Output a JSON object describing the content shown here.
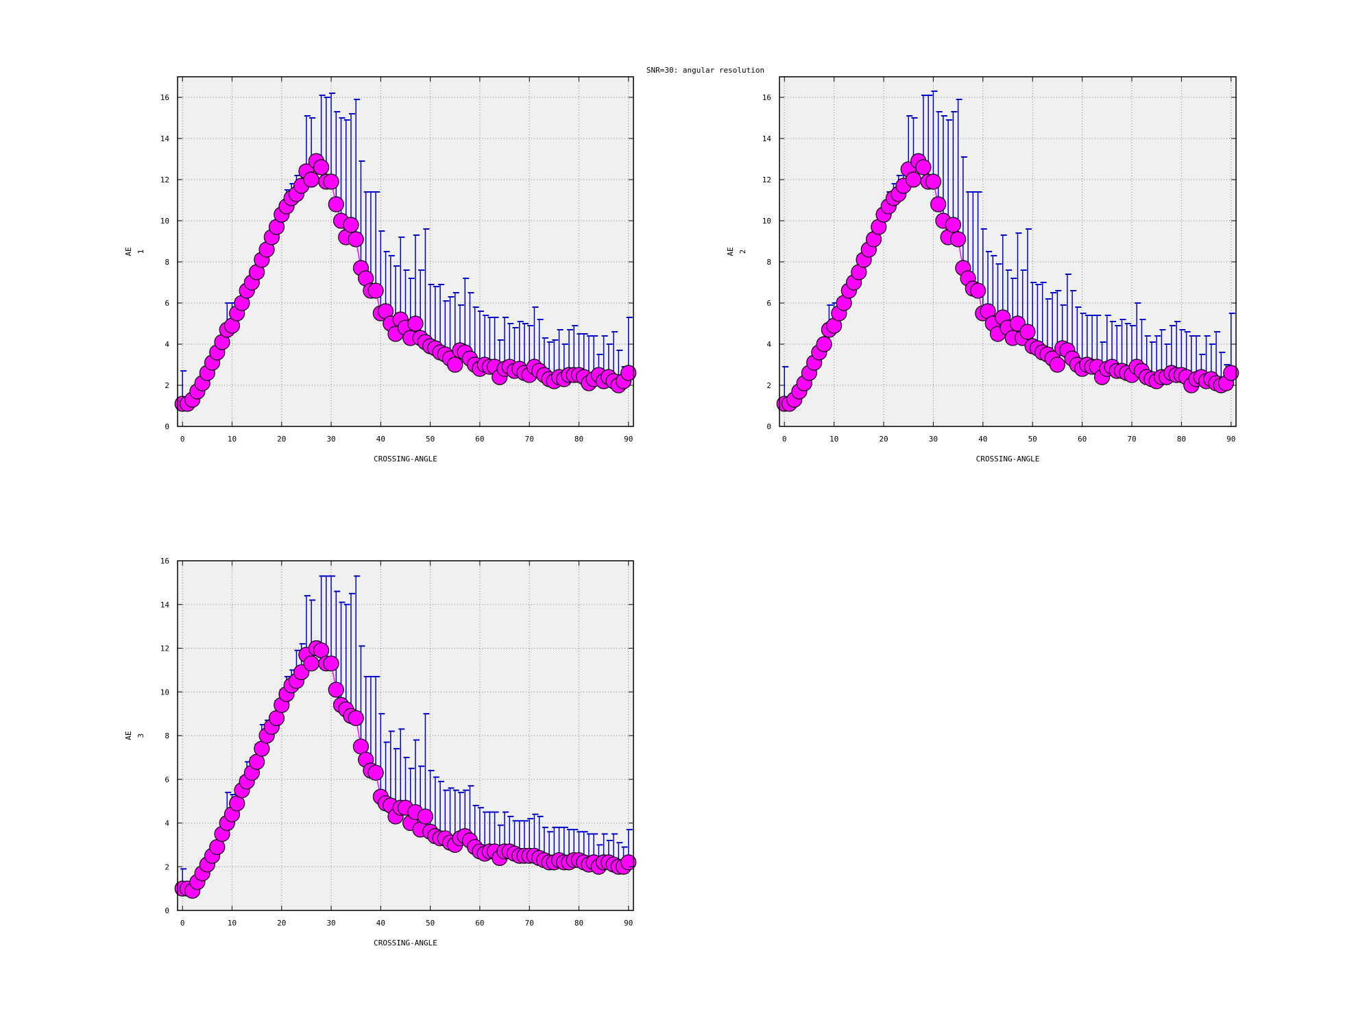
{
  "title": "SNR=30: angular resolution",
  "colors": {
    "marker": "#ff00ff",
    "errorbar": "#0000cd",
    "plot_bg": "#f0f0f0",
    "grid": "#808080"
  },
  "chart_data": [
    {
      "type": "scatter",
      "xlabel": "CROSSING-ANGLE",
      "ylabel": "AE",
      "ylabel_sub": "1",
      "xlim": [
        -1,
        91
      ],
      "ylim": [
        0,
        17
      ],
      "xticks": [
        0,
        10,
        20,
        30,
        40,
        50,
        60,
        70,
        80,
        90
      ],
      "yticks": [
        0,
        2,
        4,
        6,
        8,
        10,
        12,
        14,
        16
      ],
      "grid": true,
      "x": [
        0,
        1,
        2,
        3,
        4,
        5,
        6,
        7,
        8,
        9,
        10,
        11,
        12,
        13,
        14,
        15,
        16,
        17,
        18,
        19,
        20,
        21,
        22,
        23,
        24,
        25,
        26,
        27,
        28,
        29,
        30,
        31,
        32,
        33,
        34,
        35,
        36,
        37,
        38,
        39,
        40,
        41,
        42,
        43,
        44,
        45,
        46,
        47,
        48,
        49,
        50,
        51,
        52,
        53,
        54,
        55,
        56,
        57,
        58,
        59,
        60,
        61,
        62,
        63,
        64,
        65,
        66,
        67,
        68,
        69,
        70,
        71,
        72,
        73,
        74,
        75,
        76,
        77,
        78,
        79,
        80,
        81,
        82,
        83,
        84,
        85,
        86,
        87,
        88,
        89,
        90
      ],
      "y": [
        1.1,
        1.1,
        1.3,
        1.7,
        2.1,
        2.6,
        3.1,
        3.6,
        4.1,
        4.7,
        4.9,
        5.5,
        6.0,
        6.6,
        7.0,
        7.5,
        8.1,
        8.6,
        9.2,
        9.7,
        10.3,
        10.7,
        11.1,
        11.3,
        11.7,
        12.4,
        12.0,
        12.9,
        12.6,
        11.9,
        11.9,
        10.8,
        10.0,
        9.2,
        9.8,
        9.1,
        7.7,
        7.2,
        6.6,
        6.6,
        5.5,
        5.6,
        5.0,
        4.5,
        5.2,
        4.8,
        4.3,
        5.0,
        4.3,
        4.1,
        3.9,
        3.8,
        3.6,
        3.5,
        3.3,
        3.0,
        3.7,
        3.6,
        3.3,
        3.0,
        2.8,
        3.0,
        2.9,
        2.9,
        2.4,
        2.8,
        2.9,
        2.7,
        2.8,
        2.6,
        2.5,
        2.9,
        2.7,
        2.5,
        2.3,
        2.2,
        2.4,
        2.3,
        2.5,
        2.5,
        2.5,
        2.4,
        2.1,
        2.3,
        2.5,
        2.2,
        2.4,
        2.2,
        2.0,
        2.2,
        2.6
      ],
      "y_err_high": [
        2.7,
        1.2,
        1.6,
        1.9,
        2.3,
        2.9,
        3.5,
        4.0,
        4.8,
        6.0,
        6.0,
        6.2,
        6.5,
        7.0,
        7.6,
        8.3,
        8.7,
        9.1,
        9.5,
        9.8,
        10.4,
        11.5,
        11.8,
        12.2,
        12.6,
        15.1,
        15.0,
        13.0,
        16.1,
        16.0,
        16.2,
        15.3,
        15.0,
        14.9,
        15.2,
        15.9,
        12.9,
        11.4,
        11.4,
        11.4,
        9.5,
        8.5,
        8.3,
        7.8,
        9.2,
        7.6,
        7.2,
        9.3,
        7.6,
        9.6,
        6.9,
        6.8,
        6.9,
        6.1,
        6.3,
        6.5,
        5.9,
        7.2,
        6.5,
        5.8,
        5.6,
        5.4,
        5.3,
        5.3,
        4.2,
        5.3,
        5.0,
        4.8,
        5.1,
        5.0,
        4.9,
        5.8,
        5.2,
        4.3,
        4.1,
        4.2,
        4.7,
        4.0,
        4.7,
        4.9,
        4.5,
        4.5,
        4.4,
        4.4,
        3.5,
        4.4,
        4.0,
        4.6,
        3.7,
        2.9,
        5.3
      ]
    },
    {
      "type": "scatter",
      "xlabel": "CROSSING-ANGLE",
      "ylabel": "AE",
      "ylabel_sub": "2",
      "xlim": [
        -1,
        91
      ],
      "ylim": [
        0,
        17
      ],
      "xticks": [
        0,
        10,
        20,
        30,
        40,
        50,
        60,
        70,
        80,
        90
      ],
      "yticks": [
        0,
        2,
        4,
        6,
        8,
        10,
        12,
        14,
        16
      ],
      "grid": true,
      "x": [
        0,
        1,
        2,
        3,
        4,
        5,
        6,
        7,
        8,
        9,
        10,
        11,
        12,
        13,
        14,
        15,
        16,
        17,
        18,
        19,
        20,
        21,
        22,
        23,
        24,
        25,
        26,
        27,
        28,
        29,
        30,
        31,
        32,
        33,
        34,
        35,
        36,
        37,
        38,
        39,
        40,
        41,
        42,
        43,
        44,
        45,
        46,
        47,
        48,
        49,
        50,
        51,
        52,
        53,
        54,
        55,
        56,
        57,
        58,
        59,
        60,
        61,
        62,
        63,
        64,
        65,
        66,
        67,
        68,
        69,
        70,
        71,
        72,
        73,
        74,
        75,
        76,
        77,
        78,
        79,
        80,
        81,
        82,
        83,
        84,
        85,
        86,
        87,
        88,
        89,
        90
      ],
      "y": [
        1.1,
        1.1,
        1.3,
        1.7,
        2.1,
        2.6,
        3.1,
        3.6,
        4.0,
        4.7,
        4.9,
        5.5,
        6.0,
        6.6,
        7.0,
        7.5,
        8.1,
        8.6,
        9.1,
        9.7,
        10.3,
        10.7,
        11.1,
        11.3,
        11.7,
        12.5,
        12.0,
        12.9,
        12.6,
        11.9,
        11.9,
        10.8,
        10.0,
        9.2,
        9.8,
        9.1,
        7.7,
        7.2,
        6.7,
        6.6,
        5.5,
        5.6,
        5.0,
        4.5,
        5.3,
        4.8,
        4.3,
        5.0,
        4.3,
        4.6,
        3.9,
        3.8,
        3.6,
        3.5,
        3.3,
        3.0,
        3.8,
        3.7,
        3.3,
        3.0,
        2.8,
        3.0,
        2.9,
        2.9,
        2.4,
        2.8,
        2.9,
        2.7,
        2.7,
        2.6,
        2.5,
        2.9,
        2.7,
        2.4,
        2.3,
        2.2,
        2.4,
        2.4,
        2.6,
        2.5,
        2.5,
        2.4,
        2.0,
        2.3,
        2.4,
        2.2,
        2.3,
        2.1,
        2.0,
        2.1,
        2.6
      ],
      "y_err_high": [
        2.9,
        1.2,
        1.6,
        1.9,
        2.3,
        2.9,
        3.5,
        4.0,
        4.8,
        5.9,
        6.0,
        6.2,
        6.5,
        7.0,
        7.6,
        8.3,
        8.7,
        9.1,
        9.5,
        9.8,
        10.4,
        11.4,
        11.8,
        12.2,
        12.6,
        15.1,
        15.0,
        13.0,
        16.1,
        16.1,
        16.3,
        15.3,
        15.1,
        14.9,
        15.3,
        15.9,
        13.1,
        11.4,
        11.4,
        11.4,
        9.6,
        8.5,
        8.3,
        7.9,
        9.3,
        7.6,
        7.2,
        9.4,
        7.6,
        9.6,
        7.0,
        6.9,
        7.0,
        6.2,
        6.5,
        6.6,
        5.9,
        7.4,
        6.6,
        5.8,
        5.5,
        5.4,
        5.4,
        5.4,
        4.1,
        5.4,
        5.1,
        4.9,
        5.2,
        5.0,
        4.9,
        6.0,
        5.2,
        4.4,
        4.1,
        4.4,
        4.7,
        4.0,
        4.9,
        5.1,
        4.7,
        4.6,
        4.4,
        4.4,
        3.5,
        4.4,
        4.0,
        4.6,
        3.6,
        3.0,
        5.5
      ]
    },
    {
      "type": "scatter",
      "xlabel": "CROSSING-ANGLE",
      "ylabel": "AE",
      "ylabel_sub": "3",
      "xlim": [
        -1,
        91
      ],
      "ylim": [
        0,
        16
      ],
      "xticks": [
        0,
        10,
        20,
        30,
        40,
        50,
        60,
        70,
        80,
        90
      ],
      "yticks": [
        0,
        2,
        4,
        6,
        8,
        10,
        12,
        14,
        16
      ],
      "grid": true,
      "x": [
        0,
        1,
        2,
        3,
        4,
        5,
        6,
        7,
        8,
        9,
        10,
        11,
        12,
        13,
        14,
        15,
        16,
        17,
        18,
        19,
        20,
        21,
        22,
        23,
        24,
        25,
        26,
        27,
        28,
        29,
        30,
        31,
        32,
        33,
        34,
        35,
        36,
        37,
        38,
        39,
        40,
        41,
        42,
        43,
        44,
        45,
        46,
        47,
        48,
        49,
        50,
        51,
        52,
        53,
        54,
        55,
        56,
        57,
        58,
        59,
        60,
        61,
        62,
        63,
        64,
        65,
        66,
        67,
        68,
        69,
        70,
        71,
        72,
        73,
        74,
        75,
        76,
        77,
        78,
        79,
        80,
        81,
        82,
        83,
        84,
        85,
        86,
        87,
        88,
        89,
        90
      ],
      "y": [
        1.0,
        1.0,
        0.9,
        1.3,
        1.7,
        2.1,
        2.5,
        2.9,
        3.5,
        4.0,
        4.4,
        4.9,
        5.5,
        5.9,
        6.3,
        6.8,
        7.4,
        8.0,
        8.4,
        8.8,
        9.4,
        9.9,
        10.3,
        10.5,
        10.9,
        11.7,
        11.3,
        12.0,
        11.9,
        11.3,
        11.3,
        10.1,
        9.4,
        9.2,
        8.9,
        8.8,
        7.5,
        6.9,
        6.4,
        6.3,
        5.2,
        4.9,
        4.8,
        4.3,
        4.7,
        4.7,
        4.0,
        4.5,
        3.7,
        4.3,
        3.6,
        3.4,
        3.3,
        3.3,
        3.1,
        3.0,
        3.3,
        3.4,
        3.2,
        2.9,
        2.7,
        2.6,
        2.7,
        2.7,
        2.4,
        2.7,
        2.7,
        2.6,
        2.5,
        2.5,
        2.5,
        2.5,
        2.4,
        2.3,
        2.2,
        2.2,
        2.3,
        2.2,
        2.2,
        2.3,
        2.3,
        2.2,
        2.1,
        2.2,
        2.0,
        2.2,
        2.2,
        2.1,
        2.0,
        2.0,
        2.2
      ],
      "y_err_high": [
        1.9,
        1.1,
        1.0,
        1.4,
        1.8,
        2.3,
        2.8,
        3.2,
        4.0,
        5.4,
        5.3,
        5.5,
        6.1,
        6.8,
        7.0,
        7.6,
        8.5,
        8.7,
        8.9,
        9.6,
        10.1,
        10.7,
        11.0,
        11.9,
        12.2,
        14.4,
        14.2,
        12.3,
        15.3,
        15.3,
        15.3,
        14.6,
        14.1,
        14.0,
        14.5,
        15.3,
        12.1,
        10.7,
        10.7,
        10.7,
        9.0,
        7.7,
        8.2,
        7.4,
        8.3,
        7.0,
        6.5,
        7.8,
        6.6,
        9.0,
        6.4,
        6.1,
        5.9,
        5.5,
        5.6,
        5.5,
        5.4,
        5.5,
        5.7,
        4.8,
        4.7,
        4.5,
        4.5,
        4.5,
        3.9,
        4.5,
        4.3,
        4.1,
        4.1,
        4.1,
        4.2,
        4.4,
        4.3,
        3.8,
        3.6,
        3.8,
        3.8,
        3.8,
        3.7,
        3.7,
        3.6,
        3.6,
        3.5,
        3.5,
        3.0,
        3.5,
        3.2,
        3.5,
        3.1,
        2.9,
        3.7
      ]
    }
  ]
}
